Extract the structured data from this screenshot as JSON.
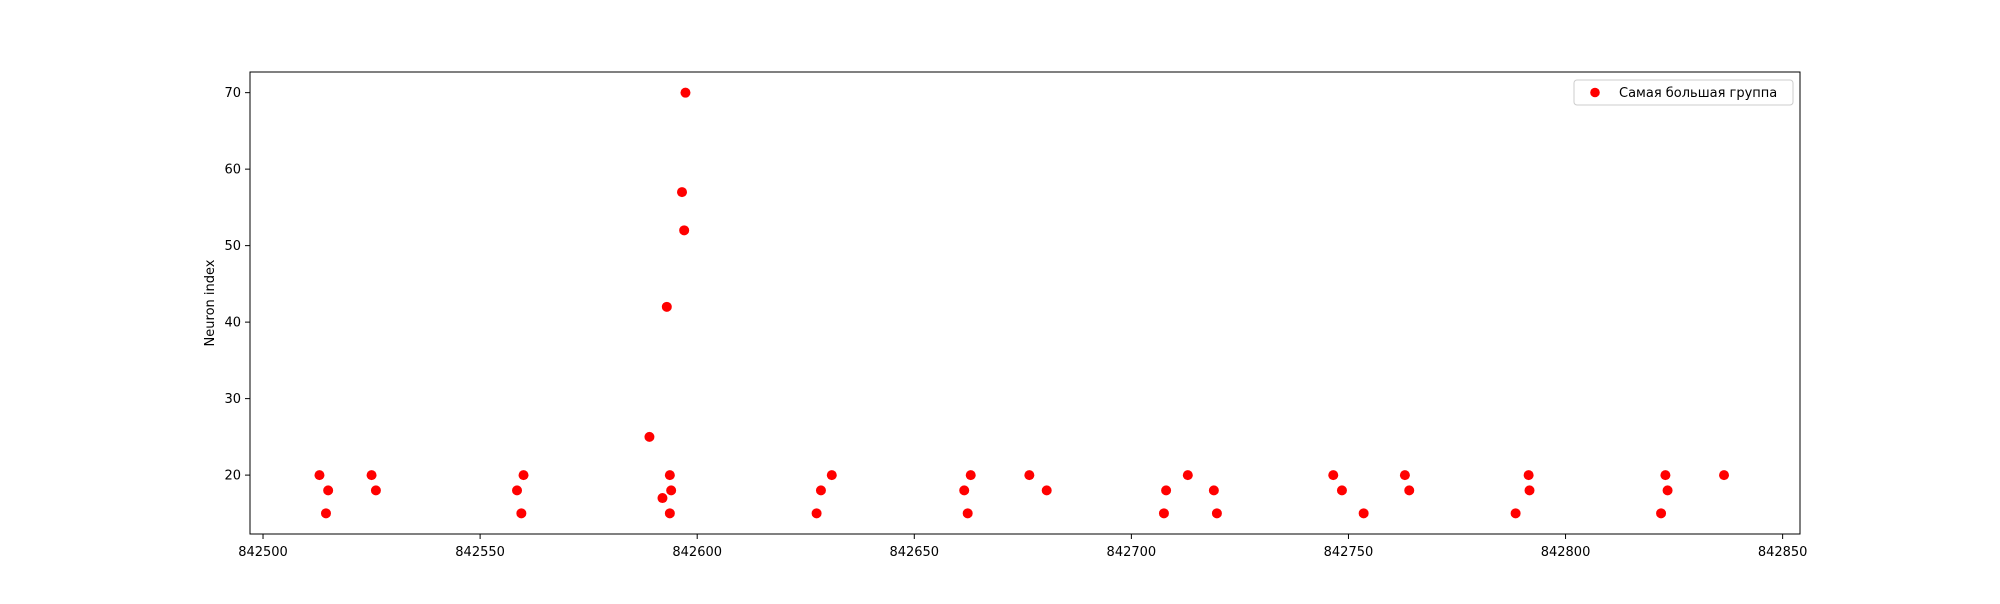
{
  "chart_data": {
    "type": "scatter",
    "title": "",
    "xlabel": "",
    "ylabel": "Neuron index",
    "xlim": [
      842497,
      842854
    ],
    "ylim": [
      12.3,
      72.7
    ],
    "x_ticks": [
      842500,
      842550,
      842600,
      842650,
      842700,
      842750,
      842800,
      842850
    ],
    "y_ticks": [
      20,
      30,
      40,
      50,
      60,
      70
    ],
    "grid": false,
    "legend_position": "top-right",
    "marker_color": "#ff0000",
    "series": [
      {
        "name": "Самая большая группа",
        "color": "#ff0000",
        "points": [
          [
            842513,
            20
          ],
          [
            842514.5,
            15
          ],
          [
            842515,
            18
          ],
          [
            842525,
            20
          ],
          [
            842526,
            18
          ],
          [
            842558.5,
            18
          ],
          [
            842559.5,
            15
          ],
          [
            842560,
            20
          ],
          [
            842589,
            25
          ],
          [
            842592,
            17
          ],
          [
            842593,
            42
          ],
          [
            842593.7,
            20
          ],
          [
            842593.7,
            15
          ],
          [
            842594,
            18
          ],
          [
            842596.5,
            57
          ],
          [
            842597,
            52
          ],
          [
            842597.3,
            70
          ],
          [
            842627.5,
            15
          ],
          [
            842628.5,
            18
          ],
          [
            842631,
            20
          ],
          [
            842661.5,
            18
          ],
          [
            842662.3,
            15
          ],
          [
            842663,
            20
          ],
          [
            842676.5,
            20
          ],
          [
            842680.5,
            18
          ],
          [
            842707.5,
            15
          ],
          [
            842708,
            18
          ],
          [
            842713,
            20
          ],
          [
            842719,
            18
          ],
          [
            842719.7,
            15
          ],
          [
            842746.5,
            20
          ],
          [
            842748.5,
            18
          ],
          [
            842753.5,
            15
          ],
          [
            842763,
            20
          ],
          [
            842764,
            18
          ],
          [
            842788.5,
            15
          ],
          [
            842791.5,
            20
          ],
          [
            842791.7,
            18
          ],
          [
            842822,
            15
          ],
          [
            842823,
            20
          ],
          [
            842823.5,
            18
          ],
          [
            842836.5,
            20
          ]
        ]
      }
    ]
  }
}
